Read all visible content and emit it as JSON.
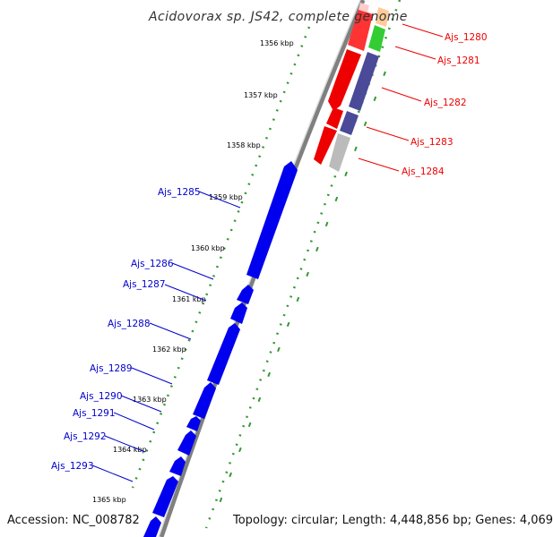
{
  "title": "Acidovorax sp. JS42, complete genome",
  "footer": {
    "accession": "Accession: NC_008782",
    "topology": "Topology: circular; Length: 4,448,856 bp; Genes: 4,069"
  },
  "ticks": [
    "1356 kbp",
    "1357 kbp",
    "1358 kbp",
    "1359 kbp",
    "1360 kbp",
    "1361 kbp",
    "1362 kbp",
    "1363 kbp",
    "1364 kbp",
    "1365 kbp"
  ],
  "colors": {
    "forward_gene": "#0000ee",
    "reverse_gene": "#ff0000",
    "forward_label": "#0000cc",
    "reverse_label": "#ee0000",
    "green_feature": "#33cc33",
    "purple_feature": "#4a4a99",
    "grey_feature": "#bbbbbb",
    "backbone": "#808080",
    "tick_marks": "#339933"
  },
  "reverse_genes": [
    "Ajs_1280",
    "Ajs_1281",
    "Ajs_1282",
    "Ajs_1283",
    "Ajs_1284"
  ],
  "forward_genes": [
    "Ajs_1285",
    "Ajs_1286",
    "Ajs_1287",
    "Ajs_1288",
    "Ajs_1289",
    "Ajs_1290",
    "Ajs_1291",
    "Ajs_1292",
    "Ajs_1293"
  ]
}
